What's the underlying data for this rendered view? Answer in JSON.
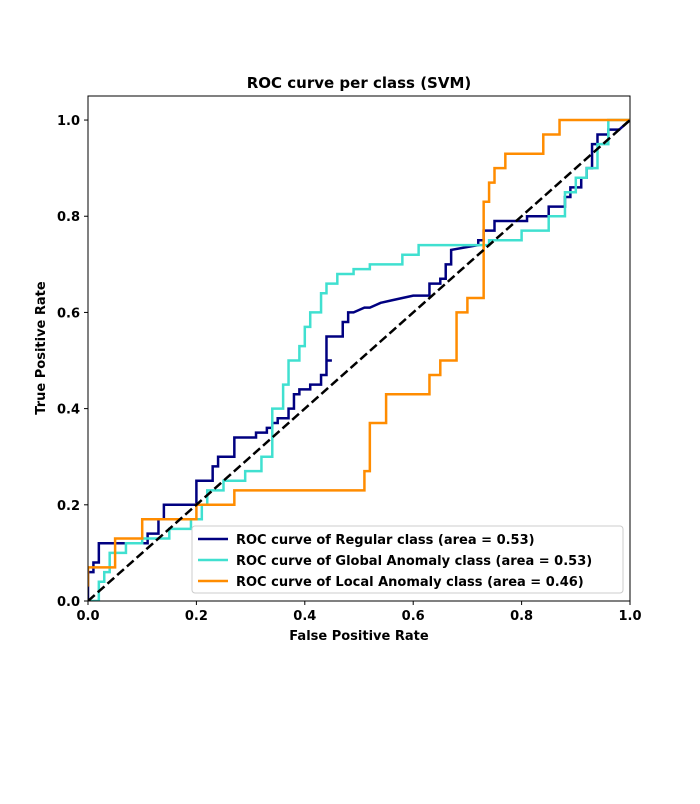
{
  "chart_data": {
    "type": "line",
    "title": "ROC curve per class (SVM)",
    "xlabel": "False Positive Rate",
    "ylabel": "True Positive Rate",
    "xlim": [
      0.0,
      1.0
    ],
    "ylim": [
      0.0,
      1.05
    ],
    "x_ticks": [
      "0.0",
      "0.2",
      "0.4",
      "0.6",
      "0.8",
      "1.0"
    ],
    "y_ticks": [
      "0.0",
      "0.2",
      "0.4",
      "0.6",
      "0.8",
      "1.0"
    ],
    "grid": false,
    "legend_position": "lower-right",
    "legend": [
      "ROC curve of Regular class (area = 0.53)",
      "ROC curve of Global Anomaly class (area = 0.53)",
      "ROC curve of Local Anomaly class (area = 0.46)"
    ],
    "series": [
      {
        "name": "ROC curve of Regular class (area = 0.53)",
        "color": "#000080",
        "x": [
          0.0,
          0.0,
          0.01,
          0.01,
          0.02,
          0.02,
          0.03,
          0.03,
          0.11,
          0.11,
          0.13,
          0.13,
          0.14,
          0.14,
          0.2,
          0.2,
          0.23,
          0.23,
          0.24,
          0.24,
          0.27,
          0.27,
          0.31,
          0.31,
          0.33,
          0.33,
          0.34,
          0.34,
          0.35,
          0.35,
          0.37,
          0.37,
          0.38,
          0.38,
          0.39,
          0.39,
          0.41,
          0.41,
          0.43,
          0.43,
          0.44,
          0.44,
          0.45,
          0.45,
          0.44,
          0.44,
          0.47,
          0.47,
          0.48,
          0.48,
          0.49,
          0.5,
          0.51,
          0.52,
          0.53,
          0.54,
          0.56,
          0.58,
          0.6,
          0.62,
          0.63,
          0.63,
          0.65,
          0.65,
          0.66,
          0.66,
          0.67,
          0.67,
          0.72,
          0.72,
          0.73,
          0.73,
          0.75,
          0.75,
          0.81,
          0.81,
          0.85,
          0.85,
          0.88,
          0.88,
          0.89,
          0.89,
          0.91,
          0.91,
          0.92,
          0.92,
          0.93,
          0.93,
          0.94,
          0.94,
          0.96,
          0.96,
          0.98,
          0.98,
          1.0
        ],
        "y": [
          0.0,
          0.06,
          0.06,
          0.08,
          0.08,
          0.12,
          0.12,
          0.12,
          0.12,
          0.14,
          0.14,
          0.17,
          0.17,
          0.2,
          0.2,
          0.25,
          0.25,
          0.28,
          0.28,
          0.3,
          0.3,
          0.34,
          0.34,
          0.35,
          0.35,
          0.36,
          0.36,
          0.37,
          0.37,
          0.38,
          0.38,
          0.4,
          0.4,
          0.43,
          0.43,
          0.44,
          0.44,
          0.45,
          0.45,
          0.47,
          0.47,
          0.5,
          0.5,
          0.5,
          0.5,
          0.55,
          0.55,
          0.58,
          0.58,
          0.6,
          0.6,
          0.605,
          0.61,
          0.61,
          0.615,
          0.62,
          0.625,
          0.63,
          0.635,
          0.635,
          0.635,
          0.66,
          0.66,
          0.67,
          0.67,
          0.7,
          0.7,
          0.73,
          0.74,
          0.75,
          0.75,
          0.77,
          0.77,
          0.79,
          0.79,
          0.8,
          0.8,
          0.82,
          0.82,
          0.84,
          0.84,
          0.86,
          0.86,
          0.88,
          0.88,
          0.9,
          0.9,
          0.95,
          0.95,
          0.97,
          0.97,
          0.98,
          0.98,
          0.98,
          1.0
        ]
      },
      {
        "name": "ROC curve of Global Anomaly class (area = 0.53)",
        "color": "#40e0d0",
        "x": [
          0.0,
          0.02,
          0.02,
          0.03,
          0.03,
          0.04,
          0.04,
          0.07,
          0.07,
          0.1,
          0.1,
          0.15,
          0.15,
          0.19,
          0.19,
          0.21,
          0.21,
          0.22,
          0.22,
          0.25,
          0.25,
          0.29,
          0.29,
          0.32,
          0.32,
          0.34,
          0.34,
          0.36,
          0.36,
          0.37,
          0.37,
          0.39,
          0.39,
          0.4,
          0.4,
          0.41,
          0.41,
          0.43,
          0.43,
          0.44,
          0.44,
          0.46,
          0.46,
          0.49,
          0.49,
          0.52,
          0.52,
          0.58,
          0.58,
          0.61,
          0.61,
          0.65,
          0.65,
          0.74,
          0.74,
          0.8,
          0.8,
          0.85,
          0.85,
          0.88,
          0.88,
          0.9,
          0.9,
          0.92,
          0.92,
          0.94,
          0.94,
          0.96,
          0.96,
          1.0
        ],
        "y": [
          0.0,
          0.0,
          0.04,
          0.04,
          0.06,
          0.06,
          0.1,
          0.1,
          0.12,
          0.12,
          0.13,
          0.13,
          0.15,
          0.15,
          0.17,
          0.17,
          0.2,
          0.2,
          0.23,
          0.23,
          0.25,
          0.25,
          0.27,
          0.27,
          0.3,
          0.3,
          0.4,
          0.4,
          0.45,
          0.45,
          0.5,
          0.5,
          0.53,
          0.53,
          0.57,
          0.57,
          0.6,
          0.6,
          0.64,
          0.64,
          0.66,
          0.66,
          0.68,
          0.68,
          0.69,
          0.69,
          0.7,
          0.7,
          0.72,
          0.72,
          0.74,
          0.74,
          0.74,
          0.74,
          0.75,
          0.75,
          0.77,
          0.77,
          0.8,
          0.8,
          0.85,
          0.85,
          0.88,
          0.88,
          0.9,
          0.9,
          0.95,
          0.95,
          1.0,
          1.0
        ]
      },
      {
        "name": "ROC curve of Local Anomaly class (area = 0.46)",
        "color": "#ff8c00",
        "x": [
          0.0,
          0.0,
          0.05,
          0.05,
          0.1,
          0.1,
          0.2,
          0.2,
          0.27,
          0.27,
          0.51,
          0.51,
          0.52,
          0.52,
          0.55,
          0.55,
          0.63,
          0.63,
          0.65,
          0.65,
          0.68,
          0.68,
          0.7,
          0.7,
          0.73,
          0.73,
          0.74,
          0.74,
          0.75,
          0.75,
          0.77,
          0.77,
          0.84,
          0.84,
          0.87,
          0.87,
          1.0
        ],
        "y": [
          0.03,
          0.07,
          0.07,
          0.13,
          0.13,
          0.17,
          0.17,
          0.2,
          0.2,
          0.23,
          0.23,
          0.27,
          0.27,
          0.37,
          0.37,
          0.43,
          0.43,
          0.47,
          0.47,
          0.5,
          0.5,
          0.6,
          0.6,
          0.63,
          0.63,
          0.83,
          0.83,
          0.87,
          0.87,
          0.9,
          0.9,
          0.93,
          0.93,
          0.97,
          0.97,
          1.0,
          1.0
        ]
      },
      {
        "name": "",
        "color": "#000000",
        "style": "dashed",
        "x": [
          0.0,
          1.0
        ],
        "y": [
          0.0,
          1.0
        ]
      }
    ]
  }
}
